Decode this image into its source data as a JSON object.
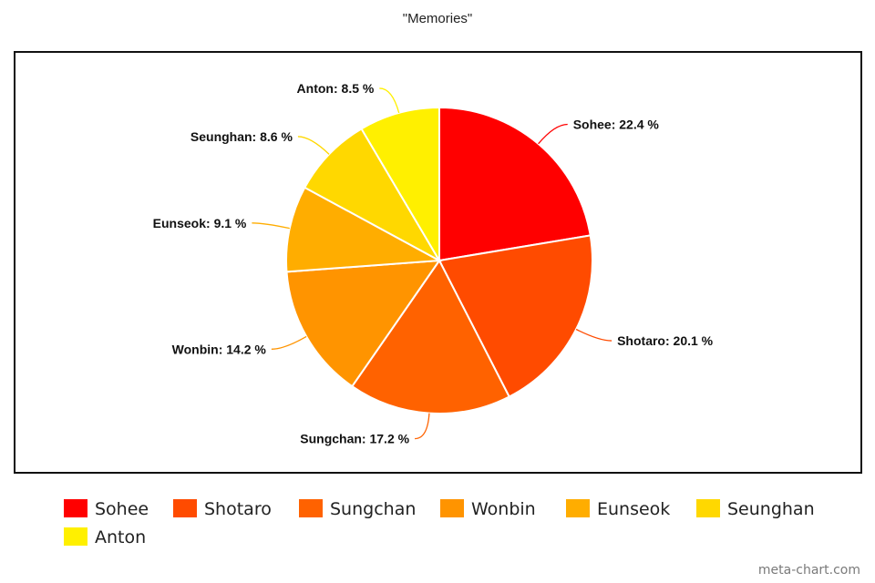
{
  "chart_data": {
    "type": "pie",
    "title": "\"Memories\"",
    "legend_position": "bottom",
    "slices": [
      {
        "label": "Sohee",
        "value": 22.4,
        "display": "Sohee: 22.4 %",
        "color": "#ff0000"
      },
      {
        "label": "Shotaro",
        "value": 20.1,
        "display": "Shotaro: 20.1 %",
        "color": "#ff4b00"
      },
      {
        "label": "Sungchan",
        "value": 17.2,
        "display": "Sungchan: 17.2 %",
        "color": "#ff6200"
      },
      {
        "label": "Wonbin",
        "value": 14.2,
        "display": "Wonbin: 14.2 %",
        "color": "#ff9400"
      },
      {
        "label": "Eunseok",
        "value": 9.1,
        "display": "Eunseok: 9.1 %",
        "color": "#ffad00"
      },
      {
        "label": "Seunghan",
        "value": 8.6,
        "display": "Seunghan: 8.6 %",
        "color": "#ffd800"
      },
      {
        "label": "Anton",
        "value": 8.5,
        "display": "Anton: 8.5 %",
        "color": "#fff000"
      }
    ]
  },
  "watermark": "meta-chart.com"
}
